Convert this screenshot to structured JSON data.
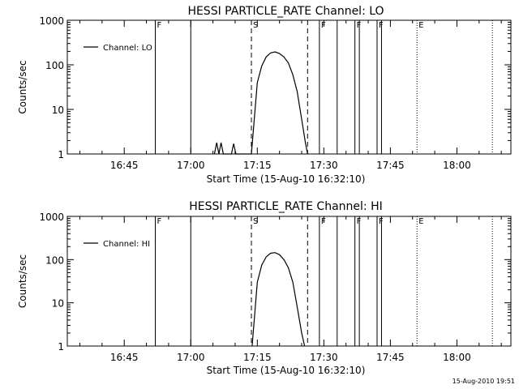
{
  "footer_timestamp": "15-Aug-2010 19:51",
  "chart_data": [
    {
      "type": "line",
      "title": "HESSI PARTICLE_RATE Channel: LO",
      "xlabel": "Start Time (15-Aug-10 16:32:10)",
      "ylabel": "Counts/sec",
      "legend": "Channel: LO",
      "legend_position": "top-left",
      "y_scale": "log",
      "ylim": [
        1,
        1000
      ],
      "y_ticks": [
        1,
        10,
        100,
        1000
      ],
      "y_tick_labels": [
        "1",
        "10",
        "100",
        "1000"
      ],
      "xlim": [
        "16:32:10",
        "18:12:10"
      ],
      "x_tick_labels": [
        "16:45",
        "17:00",
        "17:15",
        "17:30",
        "17:45",
        "18:00"
      ],
      "grid": false,
      "series": [
        {
          "x": [
            "17:05:20",
            "17:05:50",
            "17:06:20",
            "17:06:50",
            "17:07:20",
            "17:07:50",
            "17:09:10",
            "17:09:40",
            "17:10:10",
            "17:13:40",
            "17:15:00",
            "17:16:00",
            "17:17:00",
            "17:18:00",
            "17:19:00",
            "17:20:00",
            "17:21:00",
            "17:22:00",
            "17:23:00",
            "17:24:00",
            "17:25:00",
            "17:25:50",
            "17:26:20"
          ],
          "y": [
            1,
            1.8,
            1,
            1.8,
            1,
            1,
            1,
            1.7,
            1,
            1,
            40,
            95,
            150,
            185,
            195,
            180,
            150,
            110,
            60,
            25,
            6,
            1.8,
            1
          ]
        }
      ],
      "flags": [
        {
          "time": "16:52:00",
          "style": "solid",
          "label": "F"
        },
        {
          "time": "17:00:00",
          "style": "solid",
          "label": ""
        },
        {
          "time": "17:13:40",
          "style": "dashed",
          "label": "S"
        },
        {
          "time": "17:26:20",
          "style": "dashed",
          "label": ""
        },
        {
          "time": "17:29:00",
          "style": "solid",
          "label": "F"
        },
        {
          "time": "17:33:00",
          "style": "solid",
          "label": ""
        },
        {
          "time": "17:37:00",
          "style": "solid",
          "label": "F"
        },
        {
          "time": "17:38:00",
          "style": "solid",
          "label": ""
        },
        {
          "time": "17:42:00",
          "style": "solid",
          "label": "F"
        },
        {
          "time": "17:43:00",
          "style": "solid",
          "label": ""
        },
        {
          "time": "17:51:00",
          "style": "dotted",
          "label": "E"
        },
        {
          "time": "18:08:00",
          "style": "dotted",
          "label": ""
        }
      ]
    },
    {
      "type": "line",
      "title": "HESSI PARTICLE_RATE Channel: HI",
      "xlabel": "Start Time (15-Aug-10 16:32:10)",
      "ylabel": "Counts/sec",
      "legend": "Channel: HI",
      "legend_position": "top-left",
      "y_scale": "log",
      "ylim": [
        1,
        1000
      ],
      "y_ticks": [
        1,
        10,
        100,
        1000
      ],
      "y_tick_labels": [
        "1",
        "10",
        "100",
        "1000"
      ],
      "xlim": [
        "16:32:10",
        "18:12:10"
      ],
      "x_tick_labels": [
        "16:45",
        "17:00",
        "17:15",
        "17:30",
        "17:45",
        "18:00"
      ],
      "grid": false,
      "series": [
        {
          "x": [
            "17:13:50",
            "17:15:00",
            "17:16:00",
            "17:17:00",
            "17:18:00",
            "17:19:00",
            "17:20:00",
            "17:21:00",
            "17:22:00",
            "17:23:00",
            "17:24:00",
            "17:25:00",
            "17:25:40"
          ],
          "y": [
            1,
            30,
            75,
            115,
            140,
            145,
            130,
            100,
            65,
            30,
            8,
            2,
            1
          ]
        }
      ],
      "flags": [
        {
          "time": "16:52:00",
          "style": "solid",
          "label": "F"
        },
        {
          "time": "17:00:00",
          "style": "solid",
          "label": ""
        },
        {
          "time": "17:13:40",
          "style": "dashed",
          "label": "S"
        },
        {
          "time": "17:26:20",
          "style": "dashed",
          "label": ""
        },
        {
          "time": "17:29:00",
          "style": "solid",
          "label": "F"
        },
        {
          "time": "17:33:00",
          "style": "solid",
          "label": ""
        },
        {
          "time": "17:37:00",
          "style": "solid",
          "label": "F"
        },
        {
          "time": "17:38:00",
          "style": "solid",
          "label": ""
        },
        {
          "time": "17:42:00",
          "style": "solid",
          "label": "F"
        },
        {
          "time": "17:43:00",
          "style": "solid",
          "label": ""
        },
        {
          "time": "17:51:00",
          "style": "dotted",
          "label": "E"
        },
        {
          "time": "18:08:00",
          "style": "dotted",
          "label": ""
        }
      ]
    }
  ]
}
